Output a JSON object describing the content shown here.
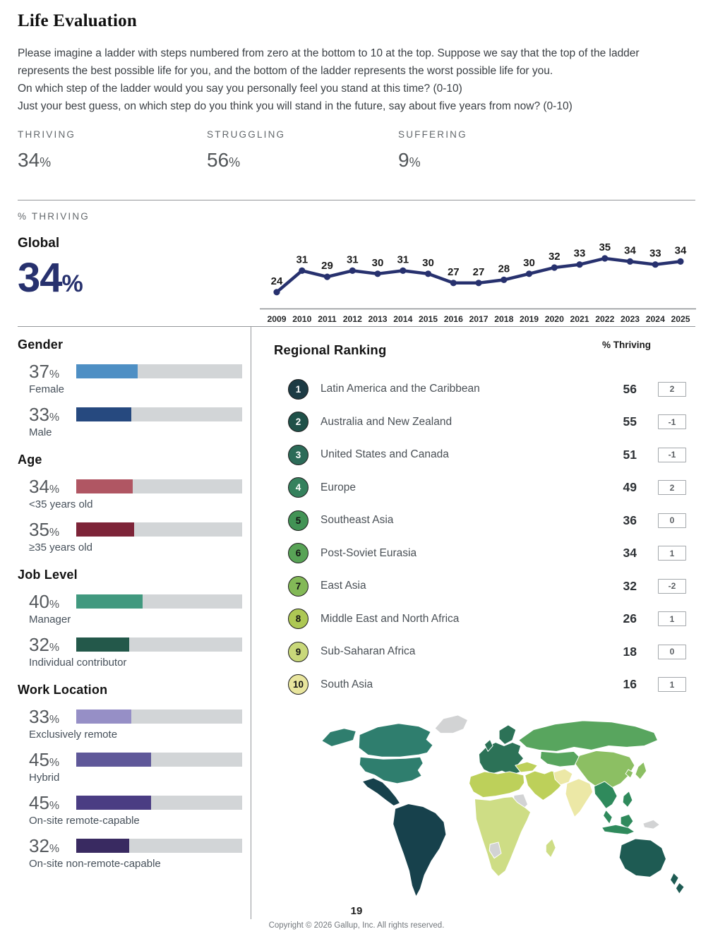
{
  "page": {
    "title": "Life Evaluation",
    "page_number": "19",
    "copyright": "Copyright © 2026 Gallup, Inc. All rights reserved."
  },
  "symbols": {
    "percent": "%"
  },
  "question": {
    "lines": [
      "Please imagine a ladder with steps numbered from zero at the bottom to 10 at the top. Suppose we say that the top of the ladder represents the best possible life for you, and the bottom of the ladder represents the worst possible life for you.",
      "On which step of the ladder would you say you personally feel you stand at this time? (0-10)",
      "Just your best guess, on which step do you think you will stand in the future, say about five years from now? (0-10)"
    ]
  },
  "summary": {
    "items": [
      {
        "label": "THRIVING",
        "value": "34"
      },
      {
        "label": "STRUGGLING",
        "value": "56"
      },
      {
        "label": "SUFFERING",
        "value": "9"
      }
    ]
  },
  "thriving_section": {
    "label": "% THRIVING",
    "global_label": "Global",
    "global_value": "34",
    "accent": "#27316e"
  },
  "chart_data": [
    {
      "type": "line",
      "title": "% THRIVING — Global trend",
      "x": [
        "2009",
        "2010",
        "2011",
        "2012",
        "2013",
        "2014",
        "2015",
        "2016",
        "2017",
        "2018",
        "2019",
        "2020",
        "2021",
        "2022",
        "2023",
        "2024",
        "2025"
      ],
      "values": [
        24,
        31,
        29,
        31,
        30,
        31,
        30,
        27,
        27,
        28,
        30,
        32,
        33,
        35,
        34,
        33,
        34
      ],
      "line_color": "#27316e",
      "data_labels": true,
      "ylim": [
        20,
        38
      ],
      "grid": false,
      "legend": "none"
    },
    {
      "type": "bar",
      "title": "% Thriving by demographic",
      "categories": [
        "Female",
        "Male",
        "<35 years old",
        "≥35 years old",
        "Manager",
        "Individual contributor",
        "Exclusively remote",
        "Hybrid",
        "On-site remote-capable",
        "On-site non-remote-capable"
      ],
      "values": [
        37,
        33,
        34,
        35,
        40,
        32,
        33,
        45,
        45,
        32
      ],
      "xlim": [
        0,
        100
      ]
    },
    {
      "type": "table",
      "title": "Regional Ranking",
      "columns": [
        "Rank",
        "Region",
        "% Thriving",
        "Rank change"
      ],
      "rows": [
        [
          1,
          "Latin America and the Caribbean",
          56,
          2
        ],
        [
          2,
          "Australia and New Zealand",
          55,
          -1
        ],
        [
          3,
          "United States and Canada",
          51,
          -1
        ],
        [
          4,
          "Europe",
          49,
          2
        ],
        [
          5,
          "Southeast Asia",
          36,
          0
        ],
        [
          6,
          "Post-Soviet Eurasia",
          34,
          1
        ],
        [
          7,
          "East Asia",
          32,
          -2
        ],
        [
          8,
          "Middle East and North Africa",
          26,
          1
        ],
        [
          9,
          "Sub-Saharan Africa",
          18,
          0
        ],
        [
          10,
          "South Asia",
          16,
          1
        ]
      ]
    }
  ],
  "demographics": {
    "track_color": "#d2d5d7",
    "sections": [
      {
        "title": "Gender",
        "items": [
          {
            "value": 37,
            "label": "Female",
            "color": "#4e8fc4"
          },
          {
            "value": 33,
            "label": "Male",
            "color": "#26497f"
          }
        ]
      },
      {
        "title": "Age",
        "items": [
          {
            "value": 34,
            "label": "<35 years old",
            "color": "#b05663"
          },
          {
            "value": 35,
            "label": "≥35 years old",
            "color": "#7d2438"
          }
        ]
      },
      {
        "title": "Job Level",
        "items": [
          {
            "value": 40,
            "label": "Manager",
            "color": "#41997f"
          },
          {
            "value": 32,
            "label": "Individual contributor",
            "color": "#23584a"
          }
        ]
      },
      {
        "title": "Work Location",
        "items": [
          {
            "value": 33,
            "label": "Exclusively remote",
            "color": "#968fc6"
          },
          {
            "value": 45,
            "label": "Hybrid",
            "color": "#5f5899"
          },
          {
            "value": 45,
            "label": "On-site remote-capable",
            "color": "#4a3d83"
          },
          {
            "value": 32,
            "label": "On-site non-remote-capable",
            "color": "#392a61"
          }
        ]
      }
    ]
  },
  "regional": {
    "title": "Regional Ranking",
    "col_header": "% Thriving",
    "rows": [
      {
        "rank": "1",
        "name": "Latin America and the Caribbean",
        "value": "56",
        "change": "2",
        "badge_color": "#1d3b44",
        "badge_text_color": "#ffffff"
      },
      {
        "rank": "2",
        "name": "Australia and New Zealand",
        "value": "55",
        "change": "-1",
        "badge_color": "#1f5149",
        "badge_text_color": "#ffffff"
      },
      {
        "rank": "3",
        "name": "United States and Canada",
        "value": "51",
        "change": "-1",
        "badge_color": "#2c6b58",
        "badge_text_color": "#ffffff"
      },
      {
        "rank": "4",
        "name": "Europe",
        "value": "49",
        "change": "2",
        "badge_color": "#35815d",
        "badge_text_color": "#ffffff"
      },
      {
        "rank": "5",
        "name": "Southeast Asia",
        "value": "36",
        "change": "0",
        "badge_color": "#429355",
        "badge_text_color": "#141414"
      },
      {
        "rank": "6",
        "name": "Post-Soviet Eurasia",
        "value": "34",
        "change": "1",
        "badge_color": "#58a356",
        "badge_text_color": "#141414"
      },
      {
        "rank": "7",
        "name": "East Asia",
        "value": "32",
        "change": "-2",
        "badge_color": "#83b957",
        "badge_text_color": "#141414"
      },
      {
        "rank": "8",
        "name": "Middle East and North Africa",
        "value": "26",
        "change": "1",
        "badge_color": "#adc854",
        "badge_text_color": "#141414"
      },
      {
        "rank": "9",
        "name": "Sub-Saharan Africa",
        "value": "18",
        "change": "0",
        "badge_color": "#c9d87a",
        "badge_text_color": "#141414"
      },
      {
        "rank": "10",
        "name": "South Asia",
        "value": "16",
        "change": "1",
        "badge_color": "#e8e59d",
        "badge_text_color": "#141414"
      }
    ]
  },
  "map": {
    "region_colors": {
      "us_canada": "#2f7e6e",
      "latam": "#17414c",
      "europe": "#2c7257",
      "post_soviet": "#58a55e",
      "east_asia": "#8cbf63",
      "mena": "#bdd05a",
      "ssa": "#cedd85",
      "south_asia": "#ece8a6",
      "se_asia": "#2f8a5c",
      "anz": "#1e5b53",
      "no_data": "#d2d3d4"
    }
  }
}
